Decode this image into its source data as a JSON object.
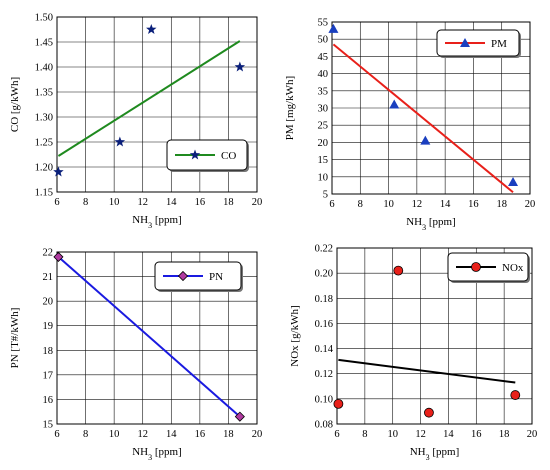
{
  "chart_data": [
    {
      "type": "scatter",
      "xlabel": "NH3 [ppm]",
      "ylabel": "CO [g/kWh]",
      "xlim": [
        6,
        20
      ],
      "ylim": [
        1.15,
        1.5
      ],
      "xticks": [
        "6",
        "8",
        "10",
        "12",
        "14",
        "16",
        "18",
        "20"
      ],
      "yticks": [
        "1.15",
        "1.20",
        "1.25",
        "1.30",
        "1.35",
        "1.40",
        "1.45",
        "1.50"
      ],
      "grid": true,
      "legend_position": "lower-right",
      "series": [
        {
          "name": "CO",
          "marker": "star",
          "marker_color": "#0a1f7a",
          "line_color": "#1f8a1f",
          "x": [
            6.1,
            10.4,
            12.6,
            18.8
          ],
          "y": [
            1.19,
            1.25,
            1.475,
            1.4
          ],
          "trend": {
            "x": [
              6.1,
              18.8
            ],
            "y": [
              1.222,
              1.452
            ]
          }
        }
      ]
    },
    {
      "type": "scatter",
      "xlabel": "NH3 [ppm]",
      "ylabel": "PM [mg/kWh]",
      "xlim": [
        6,
        20
      ],
      "ylim": [
        5,
        55
      ],
      "xticks": [
        "6",
        "8",
        "10",
        "12",
        "14",
        "16",
        "18",
        "20"
      ],
      "yticks": [
        "5",
        "10",
        "15",
        "20",
        "25",
        "30",
        "35",
        "40",
        "45",
        "50",
        "55"
      ],
      "grid": true,
      "legend_position": "top-right",
      "series": [
        {
          "name": "PM",
          "marker": "triangle",
          "marker_color": "#1a3fbf",
          "line_color": "#e8201a",
          "x": [
            6.1,
            10.4,
            12.6,
            18.8
          ],
          "y": [
            53,
            31,
            20.5,
            8.5
          ],
          "trend": {
            "x": [
              6.1,
              18.8
            ],
            "y": [
              48.5,
              5.5
            ]
          }
        }
      ]
    },
    {
      "type": "scatter",
      "xlabel": "NH3 [ppm]",
      "ylabel": "PN [T#/kWh]",
      "xlim": [
        6,
        20
      ],
      "ylim": [
        15,
        22
      ],
      "xticks": [
        "6",
        "8",
        "10",
        "12",
        "14",
        "16",
        "18",
        "20"
      ],
      "yticks": [
        "15",
        "16",
        "17",
        "18",
        "19",
        "20",
        "21",
        "22"
      ],
      "grid": true,
      "legend_position": "top-right",
      "series": [
        {
          "name": "PN",
          "marker": "diamond",
          "marker_color": "#b03aa0",
          "line_color": "#1a1ae0",
          "x": [
            6.1,
            18.8
          ],
          "y": [
            21.8,
            15.3
          ],
          "trend": {
            "x": [
              6.1,
              18.8
            ],
            "y": [
              21.8,
              15.3
            ]
          }
        }
      ]
    },
    {
      "type": "scatter",
      "xlabel": "NH3 [ppm]",
      "ylabel": "NOx [g/kWh]",
      "xlim": [
        6,
        20
      ],
      "ylim": [
        0.08,
        0.22
      ],
      "xticks": [
        "6",
        "8",
        "10",
        "12",
        "14",
        "16",
        "18",
        "20"
      ],
      "yticks": [
        "0.08",
        "0.10",
        "0.12",
        "0.14",
        "0.16",
        "0.18",
        "0.20",
        "0.22"
      ],
      "grid": true,
      "legend_position": "top-right",
      "series": [
        {
          "name": "NOx",
          "marker": "circle",
          "marker_color": "#e8201a",
          "line_color": "#000000",
          "x": [
            6.1,
            10.4,
            12.6,
            18.8
          ],
          "y": [
            0.096,
            0.202,
            0.089,
            0.103
          ],
          "trend": {
            "x": [
              6.1,
              18.8
            ],
            "y": [
              0.131,
              0.113
            ]
          }
        }
      ]
    }
  ]
}
